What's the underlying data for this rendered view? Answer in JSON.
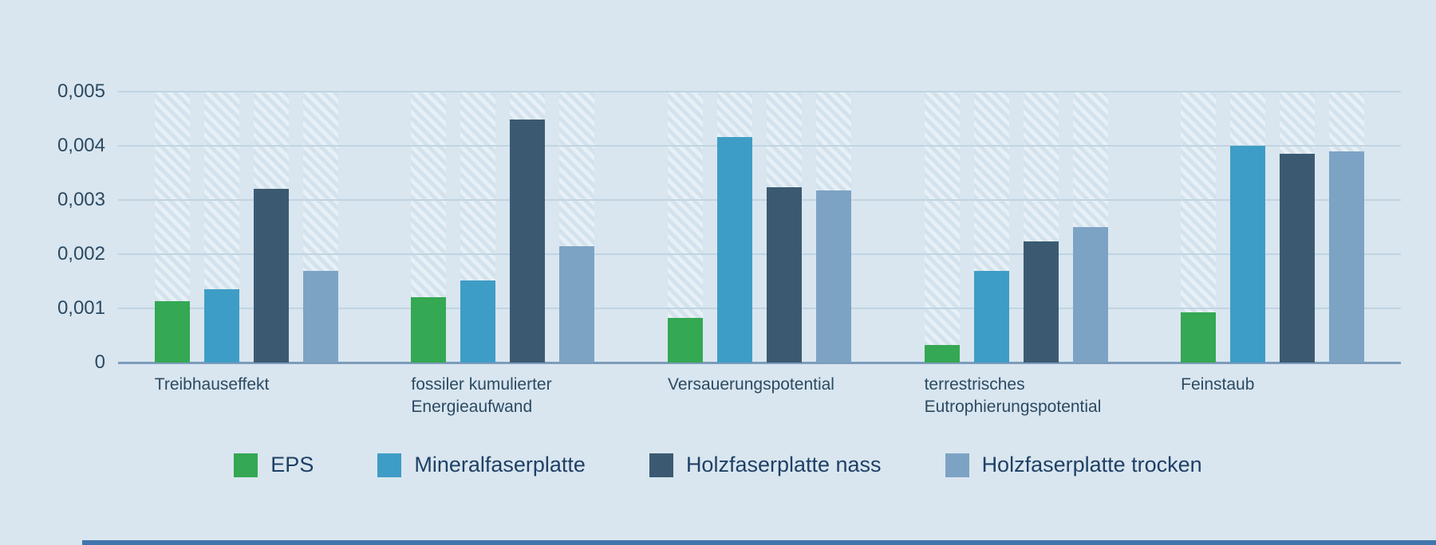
{
  "theme": {
    "background": "#d9e6ef",
    "grid_color": "#c1d4e2",
    "axis_line_color": "#7d9cbb",
    "text_color": "#2c4a63",
    "legend_text_color": "#1f4066",
    "hatch_light": "#e7f0f6",
    "hatch_dark": "#d3e2ec",
    "bottom_bar_color": "#4076ac"
  },
  "chart_data": {
    "type": "bar",
    "title": "",
    "categories": [
      "Treibhauseffekt",
      "fossiler kumulierter Energieaufwand",
      "Versauerungspotential",
      "terrestrisches Eutrophierungspotential",
      "Feinstaub"
    ],
    "series": [
      {
        "name": "EPS",
        "color": "#34a853",
        "values": [
          0.00113,
          0.0012,
          0.00083,
          0.00032,
          0.00092
        ]
      },
      {
        "name": "Mineralfaserplatte",
        "color": "#3e9dc6",
        "values": [
          0.00135,
          0.00152,
          0.00416,
          0.00169,
          0.004
        ]
      },
      {
        "name": "Holzfaserplatte nass",
        "color": "#3b5a72",
        "values": [
          0.00321,
          0.00449,
          0.00324,
          0.00223,
          0.00385
        ]
      },
      {
        "name": "Holzfaserplatte trocken",
        "color": "#7da3c4",
        "values": [
          0.00169,
          0.00215,
          0.00318,
          0.0025,
          0.0039
        ]
      }
    ],
    "ylim": [
      0,
      0.005
    ],
    "yticks": [
      {
        "value": 0,
        "label": "0"
      },
      {
        "value": 0.001,
        "label": "0,001"
      },
      {
        "value": 0.002,
        "label": "0,002"
      },
      {
        "value": 0.003,
        "label": "0,003"
      },
      {
        "value": 0.004,
        "label": "0,004"
      },
      {
        "value": 0.005,
        "label": "0,005"
      }
    ],
    "grid": true,
    "legend_position": "bottom"
  }
}
